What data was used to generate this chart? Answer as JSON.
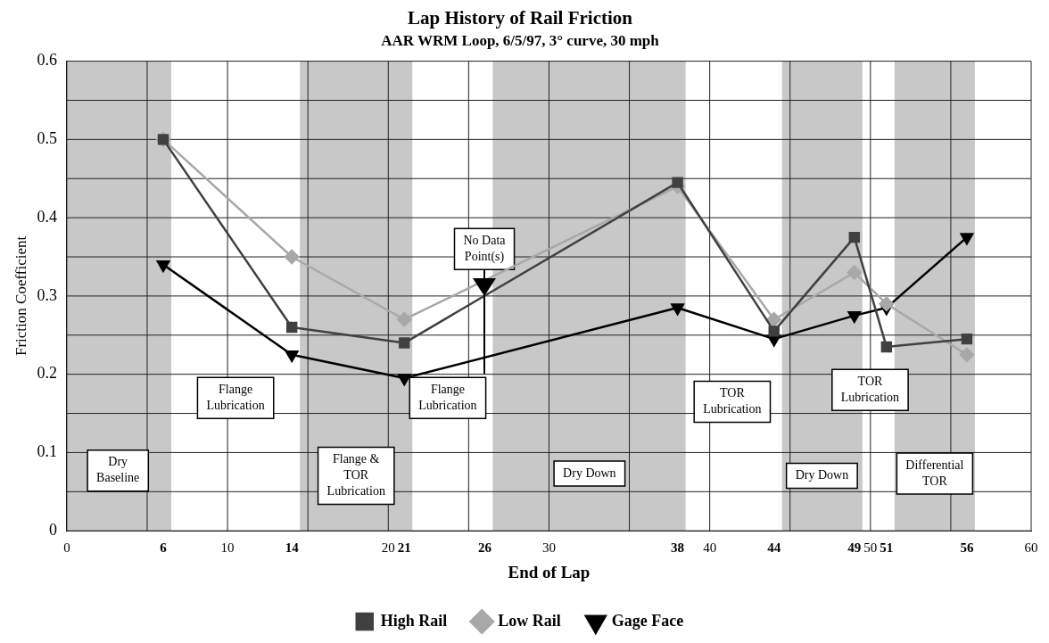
{
  "chart_data": {
    "type": "line",
    "title": "Lap History of Rail Friction",
    "subtitle": "AAR WRM Loop, 6/5/97, 3° curve, 30 mph",
    "xlabel": "End of Lap",
    "ylabel": "Friction Coefficient",
    "xlim": [
      0,
      60
    ],
    "xticks": [
      0,
      {
        "value": 5,
        "label": null
      },
      6,
      10,
      14,
      {
        "value": 15,
        "label": null
      },
      20,
      21,
      {
        "value": 25,
        "label": null
      },
      26,
      30,
      {
        "value": 35,
        "label": null
      },
      38,
      40,
      44,
      {
        "value": 45,
        "label": null
      },
      49,
      50,
      51,
      56,
      {
        "value": 55,
        "label": null
      },
      60
    ],
    "ylim": [
      0,
      0.6
    ],
    "yticks": [
      0,
      {
        "value": 0.05,
        "label": null
      },
      0.1,
      {
        "value": 0.15,
        "label": null
      },
      0.2,
      {
        "value": 0.25,
        "label": null
      },
      0.3,
      {
        "value": 0.35,
        "label": null
      },
      0.4,
      {
        "value": 0.45,
        "label": null
      },
      0.5,
      {
        "value": 0.55,
        "label": null
      },
      0.6
    ],
    "x": [
      6,
      14,
      21,
      38,
      44,
      49,
      51,
      56
    ],
    "series": [
      {
        "name": "High Rail",
        "color": "#404040",
        "marker": "square",
        "values": [
          0.5,
          0.26,
          0.24,
          0.445,
          0.255,
          0.375,
          0.235,
          0.245
        ]
      },
      {
        "name": "Low Rail",
        "color": "#a8a8a8",
        "marker": "diamond",
        "values": [
          0.5,
          0.35,
          0.27,
          0.44,
          0.27,
          0.33,
          0.29,
          0.225
        ]
      },
      {
        "name": "Gage Face",
        "color": "#000000",
        "marker": "triangle",
        "values": [
          0.34,
          0.225,
          0.195,
          0.285,
          0.245,
          0.275,
          0.285,
          0.375
        ]
      }
    ],
    "bands": [
      {
        "axis": "x",
        "from": 0,
        "to": 6.5,
        "color": "#c8c8c8"
      },
      {
        "axis": "x",
        "from": 14.5,
        "to": 21.5,
        "color": "#c8c8c8"
      },
      {
        "axis": "x",
        "from": 26.5,
        "to": 38.5,
        "color": "#c8c8c8"
      },
      {
        "axis": "x",
        "from": 44.5,
        "to": 49.5,
        "color": "#c8c8c8"
      },
      {
        "axis": "x",
        "from": 51.5,
        "to": 56.5,
        "color": "#c8c8c8"
      }
    ],
    "annotations": [
      "Dry Baseline",
      "Flange Lubrication",
      "Flange & TOR Lubrication",
      "Flange Lubrication",
      "No Data Point(s)",
      "Dry Down",
      "TOR Lubrication",
      "Dry Down",
      "TOR Lubrication",
      "Differential TOR"
    ],
    "grid": true,
    "legend": "bottom",
    "line_style": "solid"
  }
}
